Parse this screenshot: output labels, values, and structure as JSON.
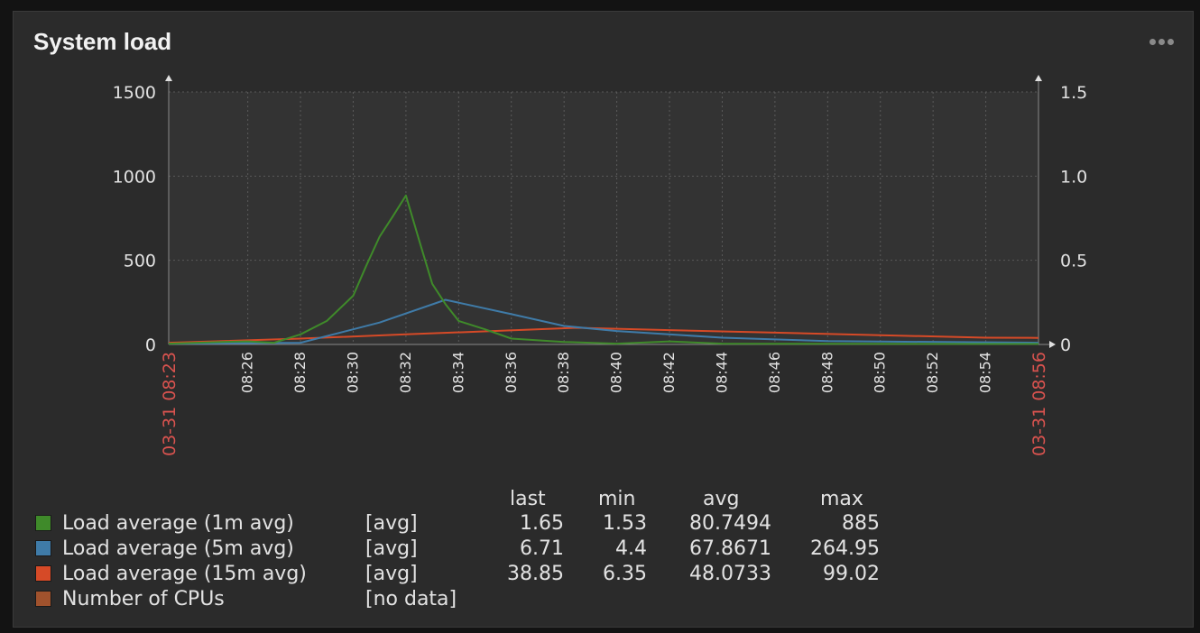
{
  "widget": {
    "title": "System load",
    "menu_icon": "more-icon"
  },
  "chart_data": {
    "type": "line",
    "title": "",
    "y_left": {
      "ticks": [
        "1500",
        "1000",
        "500",
        "0"
      ],
      "values": [
        1500,
        1000,
        500,
        0
      ],
      "ylim": [
        0,
        1500
      ]
    },
    "y_right": {
      "ticks": [
        "1.5",
        "1.0",
        "0.5",
        "0"
      ],
      "values": [
        1.5,
        1.0,
        0.5,
        0
      ],
      "ylim": [
        0,
        1.5
      ]
    },
    "x_range_minutes": [
      "08:23",
      "08:56"
    ],
    "x_ticks": [
      "08:26",
      "08:28",
      "08:30",
      "08:32",
      "08:34",
      "08:36",
      "08:38",
      "08:40",
      "08:42",
      "08:44",
      "08:46",
      "08:48",
      "08:50",
      "08:52",
      "08:54"
    ],
    "x_edge_labels": [
      "03-31 08:23",
      "03-31 08:56"
    ],
    "grid": true,
    "series": [
      {
        "name": "Load average (1m avg)",
        "color": "#3f8a2a",
        "x": [
          "08:23",
          "08:25",
          "08:26",
          "08:27",
          "08:28",
          "08:29",
          "08:30",
          "08:30:30",
          "08:31",
          "08:31:30",
          "08:32",
          "08:32:30",
          "08:33",
          "08:33:30",
          "08:34",
          "08:35",
          "08:36",
          "08:38",
          "08:40",
          "08:42",
          "08:44",
          "08:48",
          "08:56"
        ],
        "y": [
          5,
          15,
          18,
          10,
          60,
          140,
          290,
          470,
          640,
          760,
          885,
          620,
          360,
          240,
          140,
          90,
          35,
          15,
          5,
          18,
          5,
          4,
          3
        ]
      },
      {
        "name": "Load average (5m avg)",
        "color": "#3f7ba8",
        "x": [
          "08:23",
          "08:28",
          "08:31",
          "08:33:30",
          "08:36",
          "08:38",
          "08:40",
          "08:44",
          "08:48",
          "08:56"
        ],
        "y": [
          5,
          10,
          130,
          264.95,
          180,
          110,
          80,
          40,
          20,
          10
        ]
      },
      {
        "name": "Load average (15m avg)",
        "color": "#d64a27",
        "x": [
          "08:23",
          "08:28",
          "08:32",
          "08:38:30",
          "08:42",
          "08:46",
          "08:50",
          "08:54",
          "08:56"
        ],
        "y": [
          10,
          35,
          60,
          99.02,
          85,
          70,
          55,
          40,
          38.85
        ]
      },
      {
        "name": "Number of CPUs",
        "color": "#a0522d",
        "x": [],
        "y": []
      }
    ]
  },
  "legend": {
    "headers": {
      "last": "last",
      "min": "min",
      "avg": "avg",
      "max": "max"
    },
    "rows": [
      {
        "color": "#3f8a2a",
        "name": "Load average (1m avg)",
        "func": "[avg]",
        "last": "1.65",
        "min": "1.53",
        "avg": "80.7494",
        "max": "885"
      },
      {
        "color": "#3f7ba8",
        "name": "Load average (5m avg)",
        "func": "[avg]",
        "last": "6.71",
        "min": "4.4",
        "avg": "67.8671",
        "max": "264.95"
      },
      {
        "color": "#d64a27",
        "name": "Load average (15m avg)",
        "func": "[avg]",
        "last": "38.85",
        "min": "6.35",
        "avg": "48.0733",
        "max": "99.02"
      },
      {
        "color": "#a0522d",
        "name": "Number of CPUs",
        "func": "[no data]",
        "last": "",
        "min": "",
        "avg": "",
        "max": ""
      }
    ]
  }
}
